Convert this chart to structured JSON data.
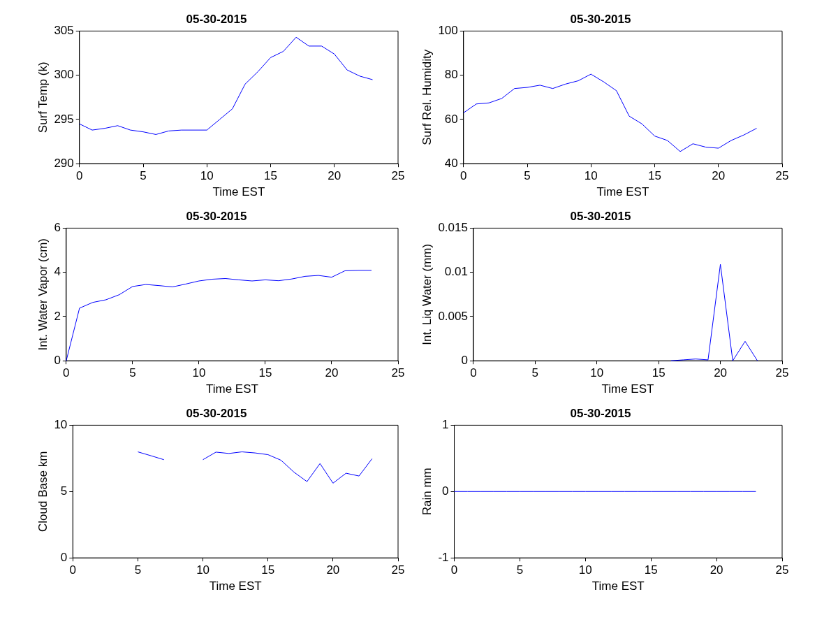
{
  "chart_data": [
    {
      "type": "line",
      "title": "05-30-2015",
      "xlabel": "Time EST",
      "ylabel": "Surf Temp (k)",
      "x": [
        0,
        1,
        2,
        3,
        4,
        5,
        6,
        7,
        8,
        9,
        10,
        11,
        12,
        13,
        14,
        15,
        16,
        17,
        18,
        19,
        20,
        21,
        22,
        23
      ],
      "series": [
        {
          "color": "#0000ff",
          "values": [
            294.5,
            293.8,
            294.0,
            294.3,
            293.8,
            293.6,
            293.3,
            293.7,
            293.8,
            293.8,
            293.8,
            295.0,
            296.2,
            299.0,
            300.4,
            302.0,
            302.7,
            304.3,
            303.3,
            303.3,
            302.4,
            300.6,
            299.9,
            299.5
          ]
        }
      ],
      "xlim": [
        0,
        25
      ],
      "xticks": [
        0,
        5,
        10,
        15,
        20,
        25
      ],
      "ylim": [
        290,
        305
      ],
      "yticks": [
        290,
        295,
        300,
        305
      ]
    },
    {
      "type": "line",
      "title": "05-30-2015",
      "xlabel": "Time EST",
      "ylabel": "Surf Rel. Humidity",
      "x": [
        0,
        1,
        2,
        3,
        4,
        5,
        6,
        7,
        8,
        9,
        10,
        11,
        12,
        13,
        14,
        15,
        16,
        17,
        18,
        19,
        20,
        21,
        22,
        23
      ],
      "series": [
        {
          "color": "#0000ff",
          "values": [
            63,
            67,
            67.5,
            69.5,
            74,
            74.5,
            75.5,
            74,
            76,
            77.5,
            80.5,
            77,
            73,
            61.5,
            58,
            52.5,
            50.5,
            45.5,
            49,
            47.5,
            47,
            50.5,
            53,
            56
          ]
        }
      ],
      "xlim": [
        0,
        25
      ],
      "xticks": [
        0,
        5,
        10,
        15,
        20,
        25
      ],
      "ylim": [
        40,
        100
      ],
      "yticks": [
        40,
        60,
        80,
        100
      ]
    },
    {
      "type": "line",
      "title": "05-30-2015",
      "xlabel": "Time EST",
      "ylabel": "Int. Water Vapor (cm)",
      "x": [
        0,
        1,
        2,
        3,
        4,
        5,
        6,
        7,
        8,
        9,
        10,
        11,
        12,
        13,
        14,
        15,
        16,
        17,
        18,
        19,
        20,
        21,
        22,
        23
      ],
      "series": [
        {
          "color": "#0000ff",
          "values": [
            0,
            2.38,
            2.64,
            2.76,
            2.99,
            3.36,
            3.45,
            3.4,
            3.34,
            3.47,
            3.61,
            3.69,
            3.72,
            3.66,
            3.61,
            3.66,
            3.62,
            3.7,
            3.82,
            3.86,
            3.78,
            4.07,
            4.09,
            4.09
          ]
        }
      ],
      "xlim": [
        0,
        25
      ],
      "xticks": [
        0,
        5,
        10,
        15,
        20,
        25
      ],
      "ylim": [
        0,
        6
      ],
      "yticks": [
        0,
        2,
        4,
        6
      ]
    },
    {
      "type": "line",
      "title": "05-30-2015",
      "xlabel": "Time EST",
      "ylabel": "Int. Liq Water (mm)",
      "x": [
        16,
        17,
        18,
        19,
        20,
        21,
        22,
        23
      ],
      "series": [
        {
          "color": "#0000ff",
          "values": [
            0,
            0.0001,
            0.0002,
            0.0001,
            0.0109,
            0,
            0.0022,
            0
          ]
        }
      ],
      "xlim": [
        0,
        25
      ],
      "xticks": [
        0,
        5,
        10,
        15,
        20,
        25
      ],
      "ylim": [
        0,
        0.015
      ],
      "yticks": [
        0,
        0.005,
        0.01,
        0.015
      ]
    },
    {
      "type": "line",
      "title": "05-30-2015",
      "xlabel": "Time EST",
      "ylabel": "Cloud Base km",
      "x": [
        5,
        6,
        7,
        8,
        9,
        10,
        11,
        12,
        13,
        14,
        15,
        16,
        17,
        18,
        19,
        20,
        21,
        22,
        23
      ],
      "series": [
        {
          "color": "#0000ff",
          "values": [
            7.99,
            7.7,
            7.4,
            null,
            null,
            7.4,
            7.97,
            7.87,
            7.99,
            7.91,
            7.78,
            7.36,
            6.46,
            5.75,
            7.11,
            5.63,
            6.38,
            6.17,
            7.47
          ]
        }
      ],
      "xlim": [
        0,
        25
      ],
      "xticks": [
        0,
        5,
        10,
        15,
        20,
        25
      ],
      "ylim": [
        0,
        10
      ],
      "yticks": [
        0,
        5,
        10
      ]
    },
    {
      "type": "line",
      "title": "05-30-2015",
      "xlabel": "Time EST",
      "ylabel": "Rain mm",
      "x": [
        0,
        1,
        2,
        3,
        4,
        5,
        6,
        7,
        8,
        9,
        10,
        11,
        12,
        13,
        14,
        15,
        16,
        17,
        18,
        19,
        20,
        21,
        22,
        23
      ],
      "series": [
        {
          "color": "#0000ff",
          "values": [
            0,
            0,
            0,
            0,
            0,
            0,
            0,
            0,
            0,
            0,
            0,
            0,
            0,
            0,
            0,
            0,
            0,
            0,
            0,
            0,
            0,
            0,
            0,
            0
          ]
        }
      ],
      "xlim": [
        0,
        25
      ],
      "xticks": [
        0,
        5,
        10,
        15,
        20,
        25
      ],
      "ylim": [
        -1,
        1
      ],
      "yticks": [
        -1,
        0,
        1
      ]
    }
  ]
}
